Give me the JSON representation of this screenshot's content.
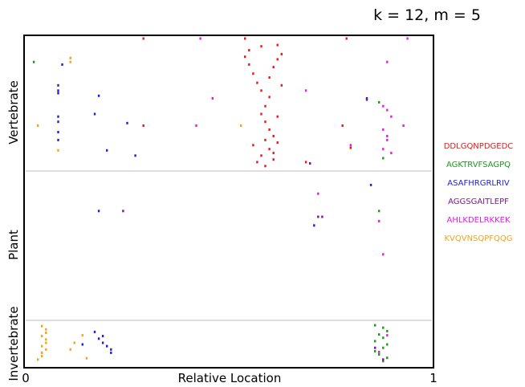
{
  "chart_data": {
    "type": "scatter",
    "title": "k = 12, m = 5",
    "xlabel": "Relative Location",
    "ylabel": "",
    "xlim": [
      0,
      1
    ],
    "x_ticks": [
      "0",
      "1"
    ],
    "grid": false,
    "legend_position": "right",
    "groups": [
      "Vertebrate",
      "Plant",
      "Invertebrate"
    ],
    "series": [
      {
        "name": "DDLGQNPDGEDC",
        "color": "#e31a1c",
        "points": [
          {
            "group": "Vertebrate",
            "x": 0.29,
            "r": 0.0
          },
          {
            "group": "Vertebrate",
            "x": 0.54,
            "r": 0.0
          },
          {
            "group": "Vertebrate",
            "x": 0.79,
            "r": 0.0
          },
          {
            "group": "Vertebrate",
            "x": 0.55,
            "r": 0.09
          },
          {
            "group": "Vertebrate",
            "x": 0.54,
            "r": 0.14
          },
          {
            "group": "Vertebrate",
            "x": 0.55,
            "r": 0.2
          },
          {
            "group": "Vertebrate",
            "x": 0.56,
            "r": 0.27
          },
          {
            "group": "Vertebrate",
            "x": 0.57,
            "r": 0.34
          },
          {
            "group": "Vertebrate",
            "x": 0.58,
            "r": 0.4
          },
          {
            "group": "Vertebrate",
            "x": 0.6,
            "r": 0.3
          },
          {
            "group": "Vertebrate",
            "x": 0.61,
            "r": 0.22
          },
          {
            "group": "Vertebrate",
            "x": 0.62,
            "r": 0.16
          },
          {
            "group": "Vertebrate",
            "x": 0.63,
            "r": 0.12
          },
          {
            "group": "Vertebrate",
            "x": 0.6,
            "r": 0.45
          },
          {
            "group": "Vertebrate",
            "x": 0.59,
            "r": 0.52
          },
          {
            "group": "Vertebrate",
            "x": 0.58,
            "r": 0.58
          },
          {
            "group": "Vertebrate",
            "x": 0.59,
            "r": 0.64
          },
          {
            "group": "Vertebrate",
            "x": 0.6,
            "r": 0.7
          },
          {
            "group": "Vertebrate",
            "x": 0.61,
            "r": 0.75
          },
          {
            "group": "Vertebrate",
            "x": 0.62,
            "r": 0.8
          },
          {
            "group": "Vertebrate",
            "x": 0.6,
            "r": 0.85
          },
          {
            "group": "Vertebrate",
            "x": 0.58,
            "r": 0.9
          },
          {
            "group": "Vertebrate",
            "x": 0.57,
            "r": 0.95
          },
          {
            "group": "Vertebrate",
            "x": 0.59,
            "r": 0.98
          },
          {
            "group": "Vertebrate",
            "x": 0.61,
            "r": 0.93
          },
          {
            "group": "Vertebrate",
            "x": 0.56,
            "r": 0.82
          },
          {
            "group": "Vertebrate",
            "x": 0.62,
            "r": 0.6
          },
          {
            "group": "Vertebrate",
            "x": 0.63,
            "r": 0.36
          },
          {
            "group": "Vertebrate",
            "x": 0.58,
            "r": 0.06
          },
          {
            "group": "Vertebrate",
            "x": 0.62,
            "r": 0.05
          },
          {
            "group": "Vertebrate",
            "x": 0.29,
            "r": 0.67
          },
          {
            "group": "Vertebrate",
            "x": 0.78,
            "r": 0.67
          },
          {
            "group": "Vertebrate",
            "x": 0.8,
            "r": 0.84
          },
          {
            "group": "Vertebrate",
            "x": 0.69,
            "r": 0.95
          },
          {
            "group": "Vertebrate",
            "x": 0.61,
            "r": 0.88
          },
          {
            "group": "Vertebrate",
            "x": 0.59,
            "r": 0.78
          }
        ]
      },
      {
        "name": "AGKTRVFSAGPQ",
        "color": "#1a9a1a",
        "points": [
          {
            "group": "Vertebrate",
            "x": 0.02,
            "r": 0.18
          },
          {
            "group": "Vertebrate",
            "x": 0.87,
            "r": 0.49
          },
          {
            "group": "Vertebrate",
            "x": 0.88,
            "r": 0.92
          },
          {
            "group": "Plant",
            "x": 0.87,
            "r": 0.26
          },
          {
            "group": "Invertebrate",
            "x": 0.86,
            "r": 0.06
          },
          {
            "group": "Invertebrate",
            "x": 0.88,
            "r": 0.12
          },
          {
            "group": "Invertebrate",
            "x": 0.89,
            "r": 0.2
          },
          {
            "group": "Invertebrate",
            "x": 0.87,
            "r": 0.28
          },
          {
            "group": "Invertebrate",
            "x": 0.88,
            "r": 0.36
          },
          {
            "group": "Invertebrate",
            "x": 0.86,
            "r": 0.44
          },
          {
            "group": "Invertebrate",
            "x": 0.89,
            "r": 0.52
          },
          {
            "group": "Invertebrate",
            "x": 0.88,
            "r": 0.6
          },
          {
            "group": "Invertebrate",
            "x": 0.86,
            "r": 0.68
          },
          {
            "group": "Invertebrate",
            "x": 0.87,
            "r": 0.76
          },
          {
            "group": "Invertebrate",
            "x": 0.89,
            "r": 0.84
          },
          {
            "group": "Invertebrate",
            "x": 0.88,
            "r": 0.92
          }
        ]
      },
      {
        "name": "ASAFHRGRLRIV",
        "color": "#1f1fd6",
        "points": [
          {
            "group": "Vertebrate",
            "x": 0.08,
            "r": 0.36
          },
          {
            "group": "Vertebrate",
            "x": 0.08,
            "r": 0.4
          },
          {
            "group": "Vertebrate",
            "x": 0.08,
            "r": 0.42
          },
          {
            "group": "Vertebrate",
            "x": 0.08,
            "r": 0.6
          },
          {
            "group": "Vertebrate",
            "x": 0.08,
            "r": 0.64
          },
          {
            "group": "Vertebrate",
            "x": 0.08,
            "r": 0.72
          },
          {
            "group": "Vertebrate",
            "x": 0.08,
            "r": 0.78
          },
          {
            "group": "Vertebrate",
            "x": 0.09,
            "r": 0.2
          },
          {
            "group": "Vertebrate",
            "x": 0.18,
            "r": 0.44
          },
          {
            "group": "Vertebrate",
            "x": 0.17,
            "r": 0.58
          },
          {
            "group": "Vertebrate",
            "x": 0.25,
            "r": 0.65
          },
          {
            "group": "Vertebrate",
            "x": 0.2,
            "r": 0.86
          },
          {
            "group": "Vertebrate",
            "x": 0.27,
            "r": 0.9
          },
          {
            "group": "Vertebrate",
            "x": 0.84,
            "r": 0.46
          },
          {
            "group": "Plant",
            "x": 0.18,
            "r": 0.26
          },
          {
            "group": "Plant",
            "x": 0.71,
            "r": 0.36
          },
          {
            "group": "Plant",
            "x": 0.85,
            "r": 0.08
          },
          {
            "group": "Invertebrate",
            "x": 0.17,
            "r": 0.22
          },
          {
            "group": "Invertebrate",
            "x": 0.18,
            "r": 0.38
          },
          {
            "group": "Invertebrate",
            "x": 0.19,
            "r": 0.48
          },
          {
            "group": "Invertebrate",
            "x": 0.2,
            "r": 0.56
          },
          {
            "group": "Invertebrate",
            "x": 0.21,
            "r": 0.64
          },
          {
            "group": "Invertebrate",
            "x": 0.21,
            "r": 0.72
          },
          {
            "group": "Invertebrate",
            "x": 0.19,
            "r": 0.32
          },
          {
            "group": "Invertebrate",
            "x": 0.14,
            "r": 0.52
          }
        ]
      },
      {
        "name": "AGGSGAITLEPF",
        "color": "#7a1a8a",
        "points": [
          {
            "group": "Vertebrate",
            "x": 0.7,
            "r": 0.96
          },
          {
            "group": "Vertebrate",
            "x": 0.84,
            "r": 0.47
          },
          {
            "group": "Plant",
            "x": 0.24,
            "r": 0.26
          },
          {
            "group": "Plant",
            "x": 0.72,
            "r": 0.3
          },
          {
            "group": "Plant",
            "x": 0.73,
            "r": 0.3
          },
          {
            "group": "Invertebrate",
            "x": 0.86,
            "r": 0.6
          },
          {
            "group": "Invertebrate",
            "x": 0.88,
            "r": 0.88
          }
        ]
      },
      {
        "name": "AHLKDELRKKEK",
        "color": "#e619e6",
        "points": [
          {
            "group": "Vertebrate",
            "x": 0.43,
            "r": 0.0
          },
          {
            "group": "Vertebrate",
            "x": 0.94,
            "r": 0.0
          },
          {
            "group": "Vertebrate",
            "x": 0.46,
            "r": 0.46
          },
          {
            "group": "Vertebrate",
            "x": 0.69,
            "r": 0.4
          },
          {
            "group": "Vertebrate",
            "x": 0.42,
            "r": 0.67
          },
          {
            "group": "Vertebrate",
            "x": 0.8,
            "r": 0.82
          },
          {
            "group": "Vertebrate",
            "x": 0.93,
            "r": 0.67
          },
          {
            "group": "Vertebrate",
            "x": 0.88,
            "r": 0.52
          },
          {
            "group": "Vertebrate",
            "x": 0.89,
            "r": 0.55
          },
          {
            "group": "Vertebrate",
            "x": 0.9,
            "r": 0.6
          },
          {
            "group": "Vertebrate",
            "x": 0.88,
            "r": 0.7
          },
          {
            "group": "Vertebrate",
            "x": 0.89,
            "r": 0.78
          },
          {
            "group": "Vertebrate",
            "x": 0.88,
            "r": 0.85
          },
          {
            "group": "Vertebrate",
            "x": 0.9,
            "r": 0.88
          },
          {
            "group": "Vertebrate",
            "x": 0.89,
            "r": 0.75
          },
          {
            "group": "Vertebrate",
            "x": 0.89,
            "r": 0.18
          },
          {
            "group": "Plant",
            "x": 0.72,
            "r": 0.14
          },
          {
            "group": "Plant",
            "x": 0.87,
            "r": 0.33
          },
          {
            "group": "Plant",
            "x": 0.88,
            "r": 0.56
          },
          {
            "group": "Invertebrate",
            "x": 0.87,
            "r": 0.7
          },
          {
            "group": "Invertebrate",
            "x": 0.89,
            "r": 0.3
          }
        ]
      },
      {
        "name": "KVQVNSQPFQQG",
        "color": "#f5a21b",
        "points": [
          {
            "group": "Vertebrate",
            "x": 0.11,
            "r": 0.15
          },
          {
            "group": "Vertebrate",
            "x": 0.11,
            "r": 0.18
          },
          {
            "group": "Vertebrate",
            "x": 0.03,
            "r": 0.67
          },
          {
            "group": "Vertebrate",
            "x": 0.08,
            "r": 0.86
          },
          {
            "group": "Vertebrate",
            "x": 0.53,
            "r": 0.67
          },
          {
            "group": "Invertebrate",
            "x": 0.04,
            "r": 0.08
          },
          {
            "group": "Invertebrate",
            "x": 0.05,
            "r": 0.16
          },
          {
            "group": "Invertebrate",
            "x": 0.05,
            "r": 0.24
          },
          {
            "group": "Invertebrate",
            "x": 0.04,
            "r": 0.32
          },
          {
            "group": "Invertebrate",
            "x": 0.05,
            "r": 0.4
          },
          {
            "group": "Invertebrate",
            "x": 0.05,
            "r": 0.48
          },
          {
            "group": "Invertebrate",
            "x": 0.04,
            "r": 0.56
          },
          {
            "group": "Invertebrate",
            "x": 0.05,
            "r": 0.64
          },
          {
            "group": "Invertebrate",
            "x": 0.04,
            "r": 0.72
          },
          {
            "group": "Invertebrate",
            "x": 0.04,
            "r": 0.8
          },
          {
            "group": "Invertebrate",
            "x": 0.03,
            "r": 0.88
          },
          {
            "group": "Invertebrate",
            "x": 0.12,
            "r": 0.48
          },
          {
            "group": "Invertebrate",
            "x": 0.11,
            "r": 0.64
          },
          {
            "group": "Invertebrate",
            "x": 0.14,
            "r": 0.3
          },
          {
            "group": "Invertebrate",
            "x": 0.15,
            "r": 0.85
          }
        ]
      }
    ]
  }
}
